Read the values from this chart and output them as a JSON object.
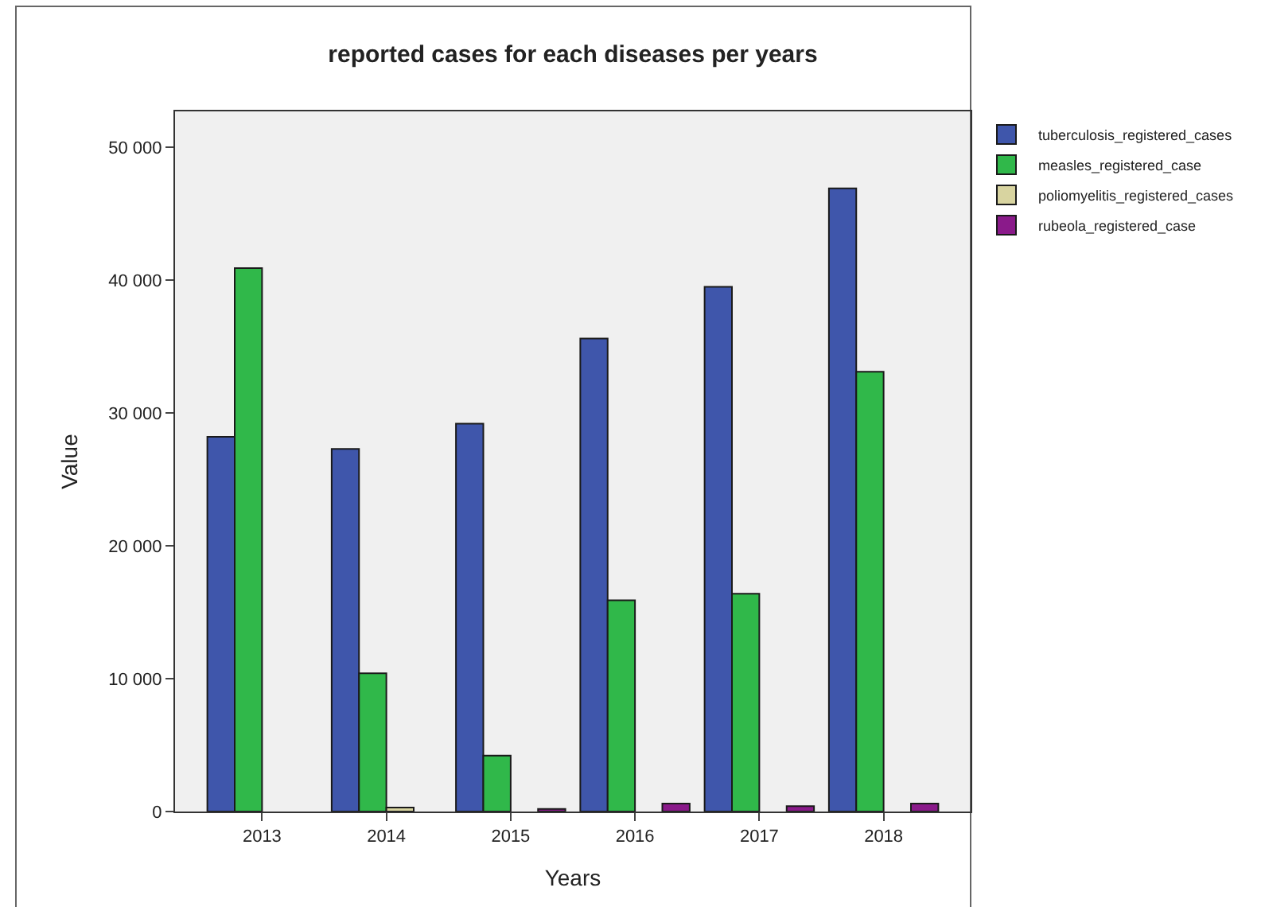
{
  "chart_data": {
    "type": "bar",
    "title": "reported cases for each diseases per years",
    "xlabel": "Years",
    "ylabel": "Value",
    "categories": [
      "2013",
      "2014",
      "2015",
      "2016",
      "2017",
      "2018"
    ],
    "series": [
      {
        "name": "tuberculosis_registered_cases",
        "color": "#3f56ab",
        "values": [
          28200,
          27300,
          29200,
          35600,
          39500,
          46900
        ]
      },
      {
        "name": "measles_registered_case",
        "color": "#30b84a",
        "values": [
          40900,
          10400,
          4200,
          15900,
          16400,
          33100
        ]
      },
      {
        "name": "poliomyelitis_registered_cases",
        "color": "#d8d4a0",
        "values": [
          null,
          300,
          null,
          null,
          null,
          null
        ]
      },
      {
        "name": "rubeola_registered_case",
        "color": "#8a1a8a",
        "values": [
          null,
          null,
          200,
          600,
          400,
          600
        ]
      }
    ],
    "ylim": [
      0,
      52700
    ],
    "yticks": [
      0,
      {
        "value": 10000,
        "label": "10 000"
      },
      {
        "value": 20000,
        "label": "20 000"
      },
      {
        "value": 30000,
        "label": "30 000"
      },
      {
        "value": 40000,
        "label": "40 000"
      },
      {
        "value": 50000,
        "label": "50 000"
      }
    ],
    "grid": false,
    "legend": "top right"
  }
}
